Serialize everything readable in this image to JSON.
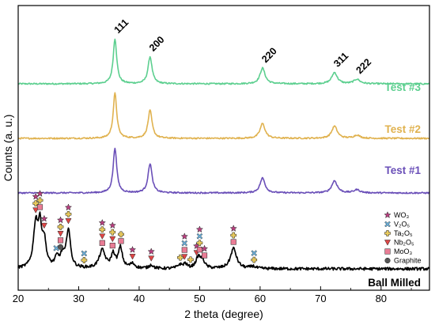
{
  "chart_data": {
    "type": "line",
    "xlabel": "2 theta (degree)",
    "ylabel": "Counts (a. u.)",
    "xlim": [
      20,
      88
    ],
    "x_ticks": [
      20,
      30,
      40,
      50,
      60,
      70,
      80
    ],
    "y_ticks_shown": false,
    "series": [
      {
        "name": "Test #3",
        "color": "#5ccf8f",
        "baseline": 0.78,
        "peaks": [
          [
            36.0,
            1.0,
            0.35
          ],
          [
            41.8,
            0.6,
            0.4
          ],
          [
            60.4,
            0.35,
            0.5
          ],
          [
            72.3,
            0.25,
            0.55
          ],
          [
            76.0,
            0.1,
            0.6
          ]
        ]
      },
      {
        "name": "Test #2",
        "color": "#e0b24f",
        "baseline": 0.55,
        "peaks": [
          [
            36.0,
            1.0,
            0.35
          ],
          [
            41.8,
            0.62,
            0.4
          ],
          [
            60.4,
            0.33,
            0.5
          ],
          [
            72.3,
            0.27,
            0.55
          ],
          [
            76.0,
            0.07,
            0.6
          ]
        ]
      },
      {
        "name": "Test #1",
        "color": "#6a4fb8",
        "baseline": 0.32,
        "peaks": [
          [
            36.0,
            1.0,
            0.35
          ],
          [
            41.8,
            0.65,
            0.4
          ],
          [
            60.4,
            0.33,
            0.5
          ],
          [
            72.3,
            0.27,
            0.55
          ],
          [
            76.0,
            0.07,
            0.6
          ]
        ]
      },
      {
        "name": "Ball Milled",
        "color": "#000000",
        "baseline": 0.0,
        "peaks": [
          [
            22.9,
            0.95,
            0.45
          ],
          [
            23.6,
            0.8,
            0.35
          ],
          [
            24.3,
            0.55,
            0.4
          ],
          [
            26.4,
            0.2,
            0.4
          ],
          [
            27.3,
            0.25,
            0.45
          ],
          [
            28.3,
            0.85,
            0.4
          ],
          [
            33.9,
            0.4,
            0.6
          ],
          [
            35.7,
            0.3,
            0.4
          ],
          [
            36.9,
            0.45,
            0.4
          ],
          [
            38.9,
            0.1,
            0.5
          ],
          [
            42.0,
            0.08,
            0.4
          ],
          [
            46.7,
            0.08,
            0.4
          ],
          [
            47.6,
            0.1,
            0.4
          ],
          [
            49.8,
            0.25,
            0.5
          ],
          [
            50.5,
            0.15,
            0.4
          ],
          [
            55.6,
            0.45,
            0.6
          ],
          [
            58.8,
            0.05,
            0.5
          ]
        ]
      }
    ],
    "peak_labels": [
      {
        "text": "111",
        "x": 36.0
      },
      {
        "text": "200",
        "x": 41.8
      },
      {
        "text": "220",
        "x": 60.4
      },
      {
        "text": "311",
        "x": 72.3
      },
      {
        "text": "222",
        "x": 76.0
      }
    ],
    "legend": {
      "position": "right",
      "entries": [
        {
          "label": "WO₃",
          "marker": "star",
          "color": "#b94080"
        },
        {
          "label": "V₂O₅",
          "marker": "cross",
          "color": "#6ab2de"
        },
        {
          "label": "Ta₂O₅",
          "marker": "plus",
          "color": "#e8c95b"
        },
        {
          "label": "Nb₂O₅",
          "marker": "triangle-down",
          "color": "#e04646"
        },
        {
          "label": "MoO₃",
          "marker": "square",
          "color": "#e97c95"
        },
        {
          "label": "Graphite",
          "marker": "circle",
          "color": "#555555"
        }
      ]
    },
    "phase_marker_groups": [
      {
        "x": 22.9,
        "markers": [
          "star",
          "plus",
          "triangle-down"
        ]
      },
      {
        "x": 23.6,
        "markers": [
          "star",
          "plus",
          "square"
        ]
      },
      {
        "x": 24.3,
        "markers": [
          "star",
          "triangle-down"
        ]
      },
      {
        "x": 26.3,
        "markers": [
          "cross"
        ]
      },
      {
        "x": 27.0,
        "markers": [
          "star",
          "plus",
          "triangle-down",
          "square",
          "circle"
        ]
      },
      {
        "x": 28.3,
        "markers": [
          "star",
          "plus",
          "triangle-down"
        ]
      },
      {
        "x": 30.9,
        "markers": [
          "cross",
          "plus"
        ]
      },
      {
        "x": 33.9,
        "markers": [
          "star",
          "plus",
          "triangle-down",
          "square"
        ]
      },
      {
        "x": 35.6,
        "markers": [
          "star",
          "plus",
          "triangle-down",
          "square"
        ]
      },
      {
        "x": 37.0,
        "markers": [
          "plus",
          "square"
        ]
      },
      {
        "x": 38.9,
        "markers": [
          "star",
          "triangle-down"
        ]
      },
      {
        "x": 42.0,
        "markers": [
          "star",
          "triangle-down"
        ]
      },
      {
        "x": 46.8,
        "markers": [
          "plus"
        ]
      },
      {
        "x": 47.5,
        "markers": [
          "star",
          "cross",
          "square",
          "triangle-down"
        ]
      },
      {
        "x": 48.5,
        "markers": [
          "plus"
        ]
      },
      {
        "x": 49.5,
        "markers": [
          "star",
          "triangle-down"
        ]
      },
      {
        "x": 50.0,
        "markers": [
          "star",
          "cross",
          "plus",
          "square"
        ]
      },
      {
        "x": 50.8,
        "markers": [
          "star",
          "square"
        ]
      },
      {
        "x": 55.6,
        "markers": [
          "star",
          "plus",
          "square"
        ]
      },
      {
        "x": 59.0,
        "markers": [
          "cross",
          "plus"
        ]
      }
    ]
  }
}
